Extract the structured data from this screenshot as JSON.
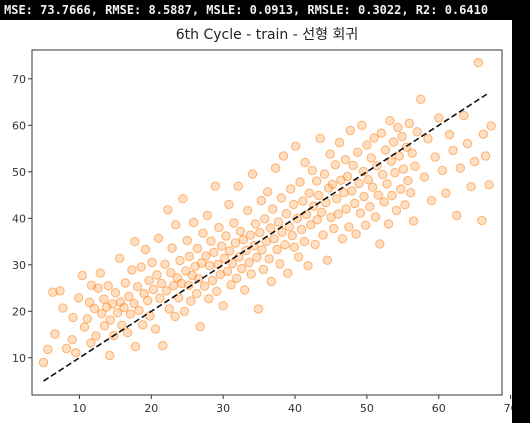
{
  "metrics_text": "MSE: 73.7666, RMSE: 8.5887, MSLE: 0.0913, RMSLE: 0.3022, R2: 0.6410",
  "colors": {
    "point": "#ff7f0e",
    "line": "#111111",
    "background": "#ffffff",
    "bar": "#000000"
  },
  "chart_data": {
    "type": "scatter",
    "title": "6th Cycle - train - 선형 회귀",
    "xlabel": "",
    "ylabel": "",
    "xlim": [
      3.4,
      68.8
    ],
    "ylim": [
      2.0,
      76.2
    ],
    "xticks": [
      10,
      20,
      30,
      40,
      50,
      60,
      70
    ],
    "yticks": [
      10,
      20,
      30,
      40,
      50,
      60,
      70
    ],
    "grid": false,
    "reference_line": {
      "style": "dashed",
      "x": [
        5,
        67
      ],
      "y": [
        5,
        67
      ]
    },
    "series": [
      {
        "marker": "circle",
        "alpha": 0.25,
        "points": [
          [
            5.0,
            9.0
          ],
          [
            5.6,
            11.8
          ],
          [
            6.3,
            24.1
          ],
          [
            6.6,
            15.1
          ],
          [
            7.3,
            24.4
          ],
          [
            7.7,
            20.7
          ],
          [
            8.2,
            12.0
          ],
          [
            9.0,
            13.9
          ],
          [
            9.1,
            18.7
          ],
          [
            9.5,
            11.1
          ],
          [
            9.9,
            22.9
          ],
          [
            10.4,
            27.7
          ],
          [
            10.7,
            16.6
          ],
          [
            11.1,
            18.4
          ],
          [
            11.4,
            21.9
          ],
          [
            11.6,
            13.2
          ],
          [
            11.7,
            25.6
          ],
          [
            12.1,
            20.6
          ],
          [
            12.3,
            14.7
          ],
          [
            12.6,
            25.0
          ],
          [
            12.9,
            28.2
          ],
          [
            13.1,
            19.5
          ],
          [
            13.4,
            22.6
          ],
          [
            13.5,
            16.9
          ],
          [
            13.8,
            20.9
          ],
          [
            14.0,
            25.5
          ],
          [
            14.2,
            10.5
          ],
          [
            14.3,
            18.1
          ],
          [
            14.6,
            21.6
          ],
          [
            14.8,
            14.8
          ],
          [
            15.0,
            24.0
          ],
          [
            15.3,
            19.7
          ],
          [
            15.6,
            31.4
          ],
          [
            15.7,
            22.0
          ],
          [
            15.9,
            17.0
          ],
          [
            16.2,
            20.8
          ],
          [
            16.4,
            26.1
          ],
          [
            16.7,
            15.4
          ],
          [
            16.9,
            23.2
          ],
          [
            17.1,
            19.4
          ],
          [
            17.3,
            28.9
          ],
          [
            17.6,
            21.7
          ],
          [
            17.7,
            35.0
          ],
          [
            17.8,
            12.4
          ],
          [
            18.1,
            25.3
          ],
          [
            18.3,
            20.2
          ],
          [
            18.6,
            29.5
          ],
          [
            18.8,
            17.1
          ],
          [
            19.0,
            23.8
          ],
          [
            19.2,
            33.3
          ],
          [
            19.5,
            22.3
          ],
          [
            19.7,
            26.6
          ],
          [
            19.8,
            19.0
          ],
          [
            20.1,
            30.5
          ],
          [
            20.3,
            24.7
          ],
          [
            20.6,
            16.2
          ],
          [
            20.8,
            27.8
          ],
          [
            21.0,
            35.7
          ],
          [
            21.2,
            22.8
          ],
          [
            21.4,
            26.0
          ],
          [
            21.6,
            12.6
          ],
          [
            21.9,
            30.1
          ],
          [
            22.1,
            24.4
          ],
          [
            22.3,
            41.8
          ],
          [
            22.5,
            20.5
          ],
          [
            22.7,
            28.3
          ],
          [
            22.9,
            33.6
          ],
          [
            23.1,
            25.5
          ],
          [
            23.3,
            18.9
          ],
          [
            23.4,
            38.6
          ],
          [
            23.6,
            27.2
          ],
          [
            23.8,
            22.9
          ],
          [
            24.0,
            30.9
          ],
          [
            24.2,
            26.0
          ],
          [
            24.4,
            44.2
          ],
          [
            24.6,
            20.0
          ],
          [
            24.8,
            28.7
          ],
          [
            25.0,
            35.2
          ],
          [
            25.2,
            25.6
          ],
          [
            25.3,
            31.8
          ],
          [
            25.5,
            22.2
          ],
          [
            25.7,
            27.7
          ],
          [
            25.9,
            39.1
          ],
          [
            26.1,
            29.6
          ],
          [
            26.3,
            23.8
          ],
          [
            26.4,
            33.5
          ],
          [
            26.6,
            27.0
          ],
          [
            26.8,
            16.7
          ],
          [
            27.0,
            30.4
          ],
          [
            27.2,
            36.8
          ],
          [
            27.4,
            25.4
          ],
          [
            27.6,
            31.9
          ],
          [
            27.8,
            40.6
          ],
          [
            28.0,
            22.7
          ],
          [
            28.1,
            29.8
          ],
          [
            28.3,
            35.1
          ],
          [
            28.5,
            26.6
          ],
          [
            28.7,
            32.7
          ],
          [
            28.9,
            46.9
          ],
          [
            29.1,
            24.3
          ],
          [
            29.3,
            30.1
          ],
          [
            29.4,
            38.0
          ],
          [
            29.6,
            27.9
          ],
          [
            29.8,
            34.0
          ],
          [
            30.0,
            21.2
          ],
          [
            30.2,
            31.4
          ],
          [
            30.4,
            36.2
          ],
          [
            30.6,
            28.6
          ],
          [
            30.8,
            43.0
          ],
          [
            30.9,
            33.0
          ],
          [
            31.1,
            25.7
          ],
          [
            31.3,
            30.3
          ],
          [
            31.5,
            39.0
          ],
          [
            31.7,
            34.7
          ],
          [
            31.9,
            27.1
          ],
          [
            32.1,
            46.9
          ],
          [
            32.2,
            31.7
          ],
          [
            32.4,
            37.2
          ],
          [
            32.6,
            29.2
          ],
          [
            32.8,
            35.4
          ],
          [
            33.0,
            24.6
          ],
          [
            33.2,
            33.1
          ],
          [
            33.4,
            41.7
          ],
          [
            33.6,
            30.5
          ],
          [
            33.8,
            36.4
          ],
          [
            33.9,
            28.0
          ],
          [
            34.1,
            49.5
          ],
          [
            34.3,
            34.1
          ],
          [
            34.5,
            38.8
          ],
          [
            34.7,
            31.6
          ],
          [
            34.9,
            20.5
          ],
          [
            35.1,
            36.9
          ],
          [
            35.3,
            43.8
          ],
          [
            35.4,
            33.2
          ],
          [
            35.6,
            29.0
          ],
          [
            35.8,
            39.9
          ],
          [
            36.0,
            35.0
          ],
          [
            36.2,
            45.7
          ],
          [
            36.4,
            31.3
          ],
          [
            36.6,
            37.9
          ],
          [
            36.7,
            26.4
          ],
          [
            36.9,
            42.0
          ],
          [
            37.1,
            35.6
          ],
          [
            37.3,
            50.8
          ],
          [
            37.5,
            33.3
          ],
          [
            37.7,
            39.2
          ],
          [
            37.9,
            30.2
          ],
          [
            38.1,
            44.4
          ],
          [
            38.2,
            37.0
          ],
          [
            38.4,
            53.4
          ],
          [
            38.6,
            34.3
          ],
          [
            38.8,
            41.0
          ],
          [
            39.0,
            28.2
          ],
          [
            39.2,
            38.2
          ],
          [
            39.4,
            46.3
          ],
          [
            39.6,
            36.3
          ],
          [
            39.8,
            43.0
          ],
          [
            39.9,
            33.8
          ],
          [
            40.1,
            55.5
          ],
          [
            40.3,
            40.0
          ],
          [
            40.5,
            31.7
          ],
          [
            40.7,
            47.8
          ],
          [
            40.9,
            37.6
          ],
          [
            41.1,
            43.7
          ],
          [
            41.3,
            35.0
          ],
          [
            41.4,
            52.0
          ],
          [
            41.6,
            40.8
          ],
          [
            41.8,
            29.8
          ],
          [
            42.0,
            45.4
          ],
          [
            42.2,
            38.6
          ],
          [
            42.4,
            50.3
          ],
          [
            42.6,
            42.6
          ],
          [
            42.8,
            34.4
          ],
          [
            43.0,
            48.0
          ],
          [
            43.1,
            39.7
          ],
          [
            43.3,
            44.9
          ],
          [
            43.5,
            57.2
          ],
          [
            43.7,
            41.3
          ],
          [
            43.9,
            36.4
          ],
          [
            44.1,
            49.5
          ],
          [
            44.3,
            43.4
          ],
          [
            44.5,
            31.0
          ],
          [
            44.7,
            46.5
          ],
          [
            44.9,
            53.8
          ],
          [
            45.0,
            40.2
          ],
          [
            45.2,
            47.3
          ],
          [
            45.4,
            37.8
          ],
          [
            45.6,
            51.5
          ],
          [
            45.8,
            44.2
          ],
          [
            46.0,
            40.9
          ],
          [
            46.2,
            56.3
          ],
          [
            46.4,
            48.2
          ],
          [
            46.6,
            35.6
          ],
          [
            46.8,
            45.5
          ],
          [
            47.0,
            52.6
          ],
          [
            47.1,
            42.0
          ],
          [
            47.3,
            49.0
          ],
          [
            47.5,
            38.1
          ],
          [
            47.7,
            58.9
          ],
          [
            47.9,
            45.9
          ],
          [
            48.1,
            51.4
          ],
          [
            48.3,
            43.2
          ],
          [
            48.5,
            36.6
          ],
          [
            48.7,
            54.2
          ],
          [
            48.9,
            47.5
          ],
          [
            49.1,
            41.1
          ],
          [
            49.3,
            60.0
          ],
          [
            49.5,
            50.1
          ],
          [
            49.6,
            44.7
          ],
          [
            49.8,
            38.5
          ],
          [
            50.0,
            55.8
          ],
          [
            50.2,
            48.3
          ],
          [
            50.4,
            42.5
          ],
          [
            50.6,
            53.0
          ],
          [
            50.8,
            46.7
          ],
          [
            51.0,
            57.3
          ],
          [
            51.2,
            40.3
          ],
          [
            51.4,
            51.3
          ],
          [
            51.6,
            45.0
          ],
          [
            51.8,
            34.5
          ],
          [
            52.0,
            58.3
          ],
          [
            52.2,
            49.4
          ],
          [
            52.4,
            43.5
          ],
          [
            52.6,
            54.7
          ],
          [
            52.8,
            47.4
          ],
          [
            53.0,
            38.8
          ],
          [
            53.2,
            61.0
          ],
          [
            53.4,
            52.3
          ],
          [
            53.5,
            44.9
          ],
          [
            53.7,
            56.4
          ],
          [
            53.9,
            49.8
          ],
          [
            54.1,
            41.7
          ],
          [
            54.3,
            59.5
          ],
          [
            54.5,
            53.4
          ],
          [
            54.7,
            46.3
          ],
          [
            54.9,
            57.6
          ],
          [
            55.1,
            50.6
          ],
          [
            55.3,
            42.9
          ],
          [
            55.5,
            55.3
          ],
          [
            55.7,
            48.1
          ],
          [
            55.9,
            60.4
          ],
          [
            56.1,
            45.5
          ],
          [
            56.3,
            54.0
          ],
          [
            56.5,
            39.4
          ],
          [
            56.7,
            51.2
          ],
          [
            57.0,
            58.6
          ],
          [
            57.5,
            65.6
          ],
          [
            58.0,
            48.9
          ],
          [
            58.5,
            57.1
          ],
          [
            59.0,
            43.8
          ],
          [
            59.5,
            53.2
          ],
          [
            60.0,
            61.6
          ],
          [
            60.5,
            50.3
          ],
          [
            61.0,
            45.4
          ],
          [
            61.5,
            58.0
          ],
          [
            62.0,
            54.6
          ],
          [
            62.5,
            40.6
          ],
          [
            63.0,
            50.8
          ],
          [
            63.5,
            62.1
          ],
          [
            64.0,
            56.1
          ],
          [
            64.5,
            46.8
          ],
          [
            65.0,
            52.2
          ],
          [
            65.5,
            73.5
          ],
          [
            66.0,
            39.5
          ],
          [
            66.2,
            58.1
          ],
          [
            66.5,
            53.4
          ],
          [
            67.0,
            47.2
          ],
          [
            67.3,
            59.9
          ]
        ]
      }
    ]
  }
}
